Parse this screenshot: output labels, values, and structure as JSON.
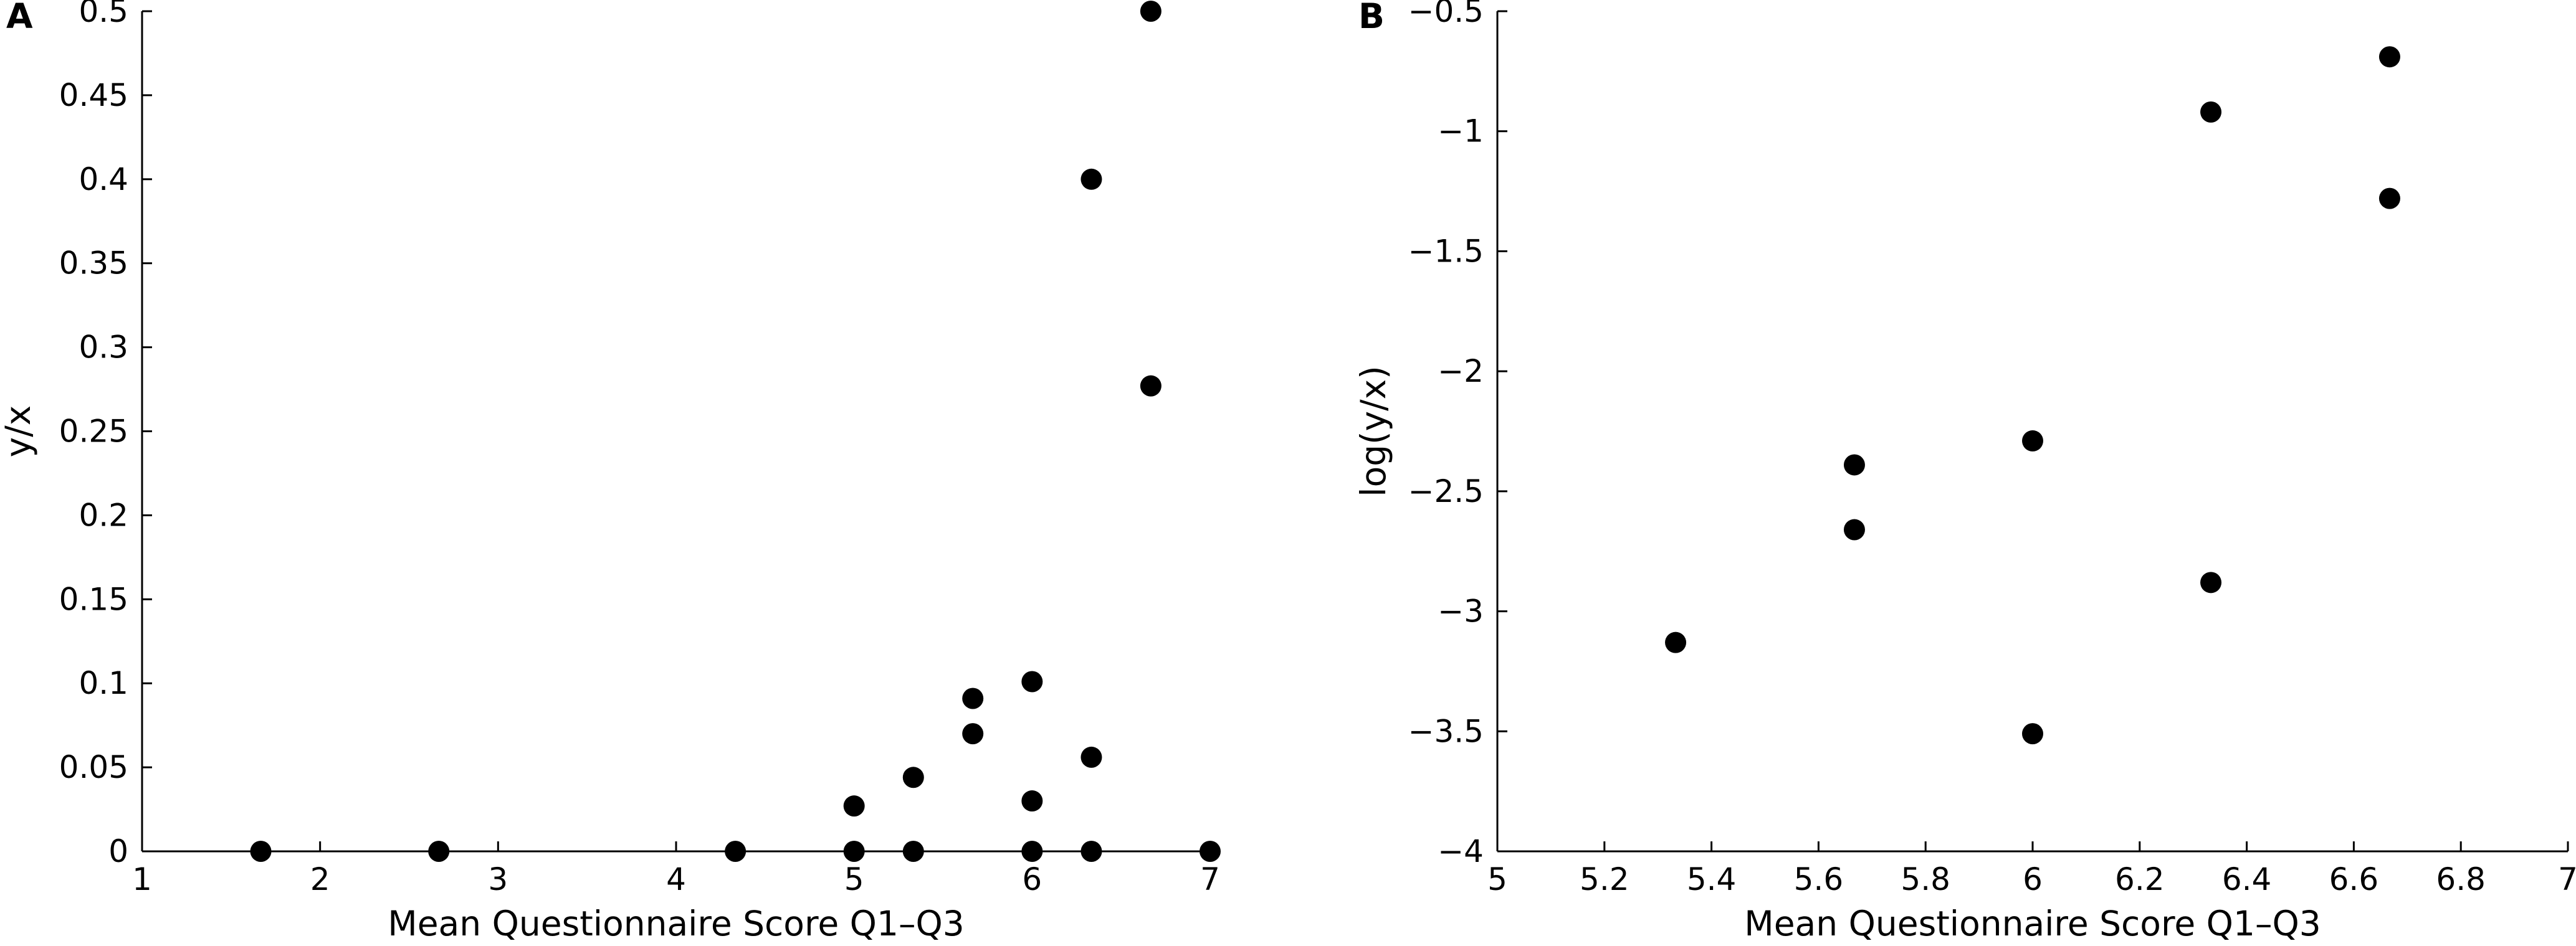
{
  "chart_data": [
    {
      "type": "scatter",
      "panel_label": "A",
      "xlabel": "Mean Questionnaire Score Q1–Q3",
      "ylabel": "y/x",
      "xlim": [
        1,
        7
      ],
      "ylim": [
        0,
        0.5
      ],
      "grid": false,
      "xticks": [
        "1",
        "2",
        "3",
        "4",
        "5",
        "6",
        "7"
      ],
      "yticks": [
        "0",
        "0.05",
        "0.1",
        "0.15",
        "0.2",
        "0.25",
        "0.3",
        "0.35",
        "0.4",
        "0.45",
        "0.5"
      ],
      "points": [
        {
          "x": 1.667,
          "y": 0
        },
        {
          "x": 2.667,
          "y": 0
        },
        {
          "x": 4.333,
          "y": 0
        },
        {
          "x": 5.0,
          "y": 0
        },
        {
          "x": 5.0,
          "y": 0.027
        },
        {
          "x": 5.333,
          "y": 0
        },
        {
          "x": 5.333,
          "y": 0.044
        },
        {
          "x": 5.667,
          "y": 0.07
        },
        {
          "x": 5.667,
          "y": 0.091
        },
        {
          "x": 6.0,
          "y": 0
        },
        {
          "x": 6.0,
          "y": 0.03
        },
        {
          "x": 6.0,
          "y": 0.101
        },
        {
          "x": 6.333,
          "y": 0
        },
        {
          "x": 6.333,
          "y": 0.056
        },
        {
          "x": 6.333,
          "y": 0.4
        },
        {
          "x": 6.667,
          "y": 0.277
        },
        {
          "x": 6.667,
          "y": 0.5
        },
        {
          "x": 7.0,
          "y": 0
        }
      ]
    },
    {
      "type": "scatter",
      "panel_label": "B",
      "xlabel": "Mean Questionnaire Score Q1–Q3",
      "ylabel": "log(y/x)",
      "xlim": [
        5,
        7
      ],
      "ylim": [
        -4,
        -0.5
      ],
      "grid": false,
      "xticks": [
        "5",
        "5.2",
        "5.4",
        "5.6",
        "5.8",
        "6",
        "6.2",
        "6.4",
        "6.6",
        "6.8",
        "7"
      ],
      "yticks": [
        "−4",
        "−3.5",
        "−3",
        "−2.5",
        "−2",
        "−1.5",
        "−1",
        "−0.5"
      ],
      "points": [
        {
          "x": 5.333,
          "y": -3.13
        },
        {
          "x": 5.667,
          "y": -2.66
        },
        {
          "x": 5.667,
          "y": -2.39
        },
        {
          "x": 6.0,
          "y": -3.51
        },
        {
          "x": 6.0,
          "y": -2.29
        },
        {
          "x": 6.333,
          "y": -2.88
        },
        {
          "x": 6.333,
          "y": -0.92
        },
        {
          "x": 6.667,
          "y": -1.28
        },
        {
          "x": 6.667,
          "y": -0.69
        }
      ]
    }
  ]
}
